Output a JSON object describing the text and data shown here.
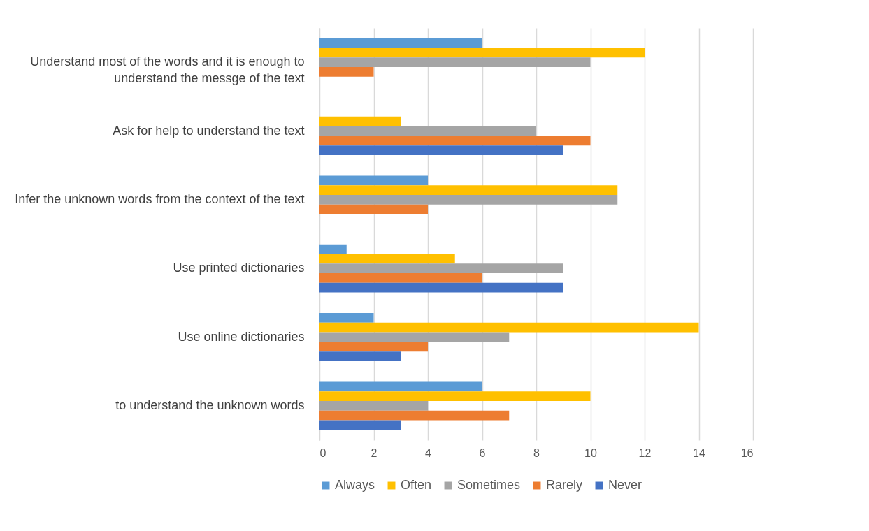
{
  "chart_data": {
    "type": "bar",
    "orientation": "horizontal",
    "categories": [
      "Understand most of the words and it is enough to understand the messge of the text",
      "Ask for help to understand the text",
      "Infer the unknown words from the context of the text",
      "Use printed dictionaries",
      "Use online dictionaries",
      "to understand the unknown words"
    ],
    "series": [
      {
        "name": "Always",
        "color": "#5b9bd5",
        "values": [
          6,
          null,
          4,
          1,
          2,
          6
        ]
      },
      {
        "name": "Often",
        "color": "#ffc000",
        "values": [
          12,
          3,
          11,
          5,
          14,
          10
        ]
      },
      {
        "name": "Sometimes",
        "color": "#a5a5a5",
        "values": [
          10,
          8,
          11,
          9,
          7,
          4
        ]
      },
      {
        "name": "Rarely",
        "color": "#ed7d31",
        "values": [
          2,
          10,
          4,
          6,
          4,
          7
        ]
      },
      {
        "name": "Never",
        "color": "#4472c4",
        "values": [
          null,
          9,
          null,
          9,
          3,
          3
        ]
      }
    ],
    "xlim": [
      0,
      16
    ],
    "xticks": [
      0,
      2,
      4,
      6,
      8,
      10,
      12,
      14,
      16
    ],
    "grid": "x",
    "legend": "bottom"
  }
}
